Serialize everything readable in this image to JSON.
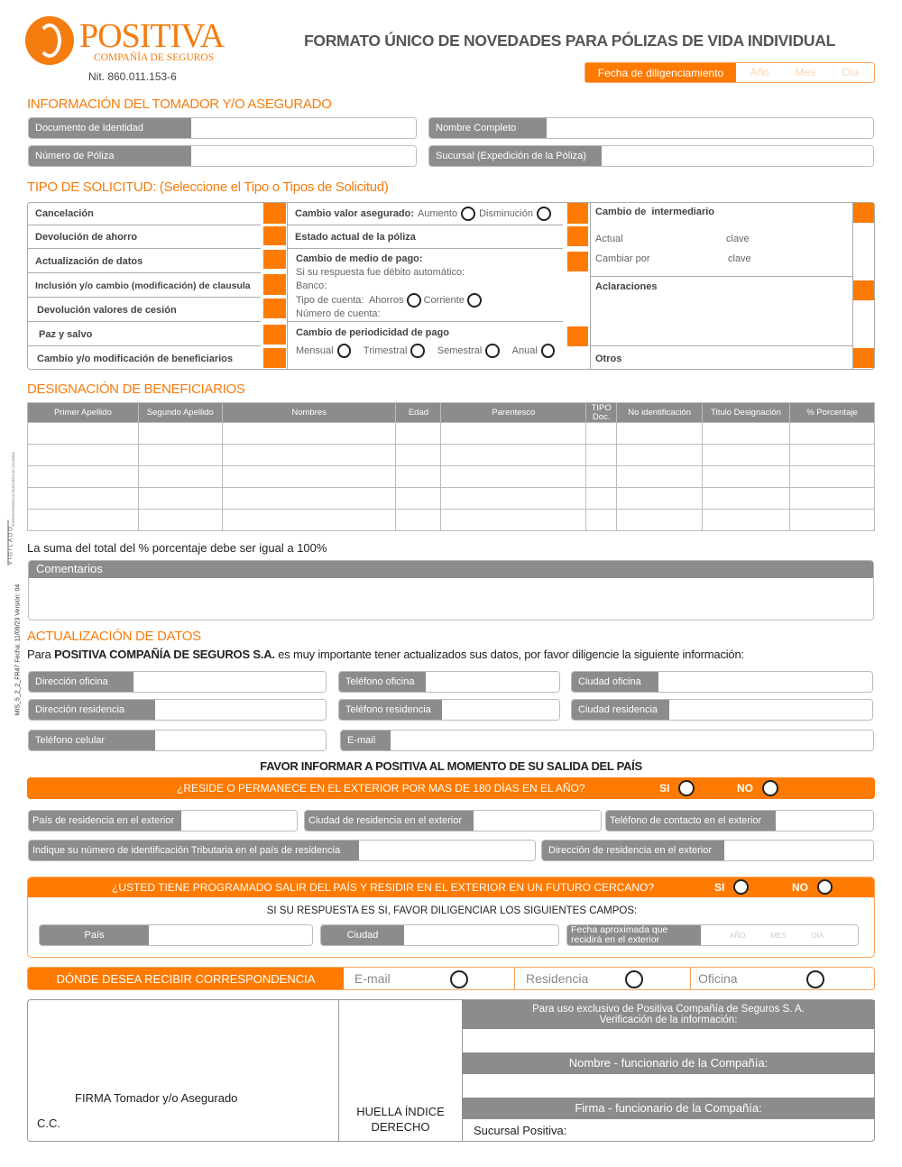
{
  "header": {
    "logo_text": "POSITIVA",
    "logo_sub": "COMPAÑÍA DE SEGUROS",
    "nit": "Nit. 860.011.153-6",
    "title": "FORMATO ÚNICO DE NOVEDADES PARA PÓLIZAS DE VIDA INDIVIDUAL",
    "fecha_label": "Fecha de diligenciamiento",
    "anio": "Año",
    "mes": "Mes",
    "dia": "Día"
  },
  "tomador": {
    "heading": "INFORMACIÓN DEL TOMADOR Y/O ASEGURADO",
    "fields": [
      "Documento de Identidad",
      "Nombre Completo",
      "Número de Póliza",
      "Sucursal (Expedición de la Póliza)"
    ]
  },
  "solicitud": {
    "heading": "TIPO DE SOLICITUD: (Seleccione el Tipo o Tipos de Solicitud)",
    "col1": [
      "Cancelación",
      "Devolución de ahorro",
      "Actualización de datos",
      "Inclusión y/o cambio (modificación) de clausula",
      "Devolución valores de cesión",
      "Paz y salvo",
      "Cambio y/o modificación de beneficiarios"
    ],
    "valor": {
      "label": "Cambio valor asegurado:",
      "aumento": "Aumento",
      "disminucion": "Disminución"
    },
    "estado": "Estado actual de la póliza",
    "medio": {
      "label": "Cambio de medio de pago:",
      "debito": "Si su respuesta fue débito automático:",
      "banco": "Banco:",
      "tipo": "Tipo de cuenta:",
      "ahorros": "Ahorros",
      "corriente": "Corriente",
      "numero": "Número de cuenta:"
    },
    "periodicidad": {
      "label": "Cambio de periodicidad de pago",
      "opts": [
        "Mensual",
        "Trimestral",
        "Semestral",
        "Anual"
      ]
    },
    "intermediario": {
      "label": "Cambio de  intermediario",
      "actual": "Actual",
      "cambiar": "Cambiar por",
      "clave": "clave"
    },
    "aclaraciones": "Aclaraciones",
    "otros": "Otros"
  },
  "beneficiarios": {
    "heading": "DESIGNACIÓN DE BENEFICIARIOS",
    "columns": [
      "Primer Apellido",
      "Segundo Apellido",
      "Nombres",
      "Edad",
      "Parentesco",
      "TIPO Doc.",
      "No identificación",
      "Titulo Designación",
      "% Porcentaje"
    ],
    "note": "La suma del total del % porcentaje debe ser igual a 100%"
  },
  "comentarios": "Comentarios",
  "actualizacion": {
    "heading": "ACTUALIZACIÓN DE DATOS",
    "intro_pre": "Para ",
    "intro_bold": "POSITIVA COMPAÑÍA DE SEGUROS S.A.",
    "intro_post": " es muy importante tener actualizados sus datos, por favor diligencie la siguiente información:",
    "fields": [
      "Dirección oficina",
      "Teléfono oficina",
      "Ciudad oficina",
      "Dirección residencia",
      "Teléfono residencia",
      "Ciudad residencia",
      "Teléfono celular",
      "E-mail"
    ]
  },
  "exterior": {
    "notice": "FAVOR INFORMAR A POSITIVA AL MOMENTO DE SU SALIDA DEL PAÍS",
    "question": "¿RESIDE O PERMANECE EN EL EXTERIOR POR MAS DE 180 DÍAS EN EL AÑO?",
    "si": "SI",
    "no": "NO",
    "fields": [
      "País de residencia en el exterior",
      "Ciudad de residencia en el exterior",
      "Teléfono de contacto en el exterior",
      "Indique su número de identificación Tributaria en el país de residencia",
      "Dirección de residencia en el exterior"
    ]
  },
  "futuro": {
    "question": "¿USTED TIENE PROGRAMADO SALIR DEL PAÍS Y RESIDIR EN EL EXTERIOR EN UN FUTURO CERCANO?",
    "si": "SI",
    "no": "NO",
    "instruction": "SI SU RESPUESTA ES SI, FAVOR DILIGENCIAR LOS SIGUIENTES CAMPOS:",
    "pais": "País",
    "ciudad": "Ciudad",
    "fecha": "Fecha aproximada que recidirá en el exterior",
    "anio": "AÑO",
    "mes": "MES",
    "dia": "DÍA"
  },
  "correspondencia": {
    "label": "DÓNDE DESEA RECIBIR CORRESPONDENCIA",
    "opts": [
      "E-mail",
      "Residencia",
      "Oficina"
    ]
  },
  "firma": {
    "firma": "FIRMA Tomador y/o Asegurado",
    "cc": "C.C.",
    "huella": "HUELLA ÍNDICE DERECHO",
    "uso": "Para uso exclusivo de Positiva Compañía de Seguros S. A.",
    "verif": "Verificación de la información:",
    "nombre": "Nombre - funcionario de la Compañía:",
    "firma_func": "Firma - funcionario de la Compañía:",
    "sucursal": "Sucursal Positiva:"
  },
  "side": {
    "code": "MIS_5_2_2_FR47 Fecha: 11/09/23 Versión: 04",
    "vigilado": "VIGILADO",
    "super": "SUPERINTENDENCIA FINANCIERA DE COLOMBIA"
  },
  "colors": {
    "accent": "#ff7a00",
    "label_gray": "#8c8c8c"
  }
}
